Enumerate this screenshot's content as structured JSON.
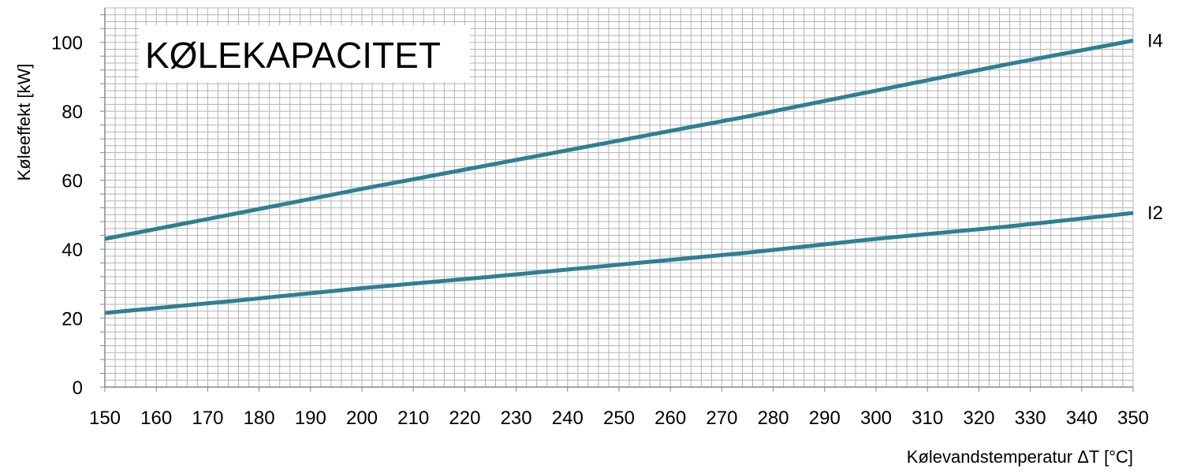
{
  "chart_data": {
    "type": "line",
    "title": "KØLEKAPACITET",
    "xlabel": "Kølevandstemperatur ΔT [°C]",
    "ylabel": "Køleeffekt [kW]",
    "xlim": [
      150,
      350
    ],
    "ylim": [
      0,
      110
    ],
    "x_ticks": [
      150,
      160,
      170,
      180,
      190,
      200,
      210,
      220,
      230,
      240,
      250,
      260,
      270,
      280,
      290,
      300,
      310,
      320,
      330,
      340,
      350
    ],
    "y_ticks": [
      0,
      20,
      40,
      60,
      80,
      100
    ],
    "grid": true,
    "series": [
      {
        "name": "I4",
        "x": [
          150,
          175,
          200,
          225,
          250,
          275,
          300,
          325,
          350
        ],
        "y": [
          43,
          50.2,
          57.5,
          64.5,
          71.5,
          78.5,
          86,
          93.5,
          100.5
        ]
      },
      {
        "name": "I2",
        "x": [
          150,
          175,
          200,
          225,
          250,
          275,
          300,
          325,
          350
        ],
        "y": [
          21.5,
          25,
          28.7,
          32,
          35.5,
          39,
          43,
          46.5,
          50.5
        ]
      }
    ],
    "colors": {
      "line": "#2e7f95",
      "grid": "#b3b3b3",
      "axis": "#888888"
    }
  }
}
